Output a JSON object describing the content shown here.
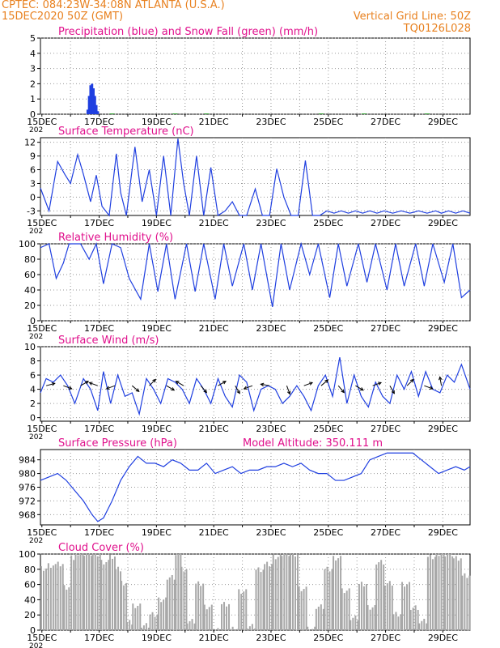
{
  "header": {
    "line1": "CPTEC:   084:23W-34:08N   ATLANTA (U.S.A.)",
    "line2": "15DEC2020 50Z (GMT)",
    "grid_note": "Vertical Grid Line: 50Z",
    "code": "TQ0126L028"
  },
  "colors": {
    "header": "#e8801e",
    "title": "#e0108c",
    "line": "#1f3fe0",
    "bar_precip": "#1f3fe0",
    "bar_snow": "#2ea02e",
    "bar_cloud": "#a8a8a8"
  },
  "x_ticks": [
    "15DEC",
    "17DEC",
    "19DEC",
    "21DEC",
    "23DEC",
    "25DEC",
    "27DEC",
    "29DEC"
  ],
  "year_label": "202",
  "chart_data": [
    {
      "type": "bar",
      "title": "Precipitation (blue) and Snow Fall (green) (mm/h)",
      "ylim": [
        0,
        5
      ],
      "yticks": [
        0,
        1,
        2,
        3,
        4,
        5
      ],
      "x_unit": "days since 15DEC",
      "series": [
        {
          "name": "Precipitation",
          "x": [
            1.65,
            1.7,
            1.75,
            1.8,
            1.85,
            1.9,
            1.95,
            2.0
          ],
          "values": [
            0.3,
            1.2,
            1.9,
            2.0,
            1.7,
            1.2,
            0.6,
            0.2
          ]
        },
        {
          "name": "Snow Fall",
          "x": [
            2.5,
            4.7,
            5.8,
            9.8,
            11.3,
            13.5
          ],
          "values": [
            0.05,
            0.05,
            0.05,
            0.05,
            0.05,
            0.05
          ]
        }
      ]
    },
    {
      "type": "line",
      "title": "Surface Temperature (nC)",
      "ylim": [
        -4,
        13
      ],
      "yticks": [
        -3,
        0,
        3,
        6,
        9,
        12
      ],
      "x": [
        0,
        0.3,
        0.6,
        0.85,
        1.05,
        1.3,
        1.5,
        1.75,
        1.95,
        2.15,
        2.4,
        2.65,
        2.8,
        3.0,
        3.3,
        3.55,
        3.8,
        4.05,
        4.3,
        4.55,
        4.8,
        5.0,
        5.2,
        5.45,
        5.7,
        5.95,
        6.2,
        6.45,
        6.7,
        6.95,
        7.2,
        7.5,
        7.75,
        8.0,
        8.25,
        8.5,
        8.75,
        9.0,
        9.25,
        9.5,
        9.75,
        10.0,
        10.25,
        10.5,
        10.75,
        11.0,
        11.25,
        11.5,
        11.75,
        12.0,
        12.3,
        12.6,
        12.9,
        13.2,
        13.5,
        13.8,
        14.0,
        14.25,
        14.5,
        14.75,
        15.0
      ],
      "values": [
        2,
        -3,
        7.8,
        5,
        3,
        9.3,
        5,
        -1,
        4.8,
        -2,
        -4,
        9.5,
        1,
        -4,
        11,
        -1,
        6,
        -4,
        9,
        -4,
        12.8,
        3,
        -4,
        9,
        -4,
        6.5,
        -4,
        -3,
        -1,
        -4,
        -4,
        1.8,
        -4,
        -4,
        6.2,
        0,
        -4,
        -4,
        8,
        -4,
        -4,
        -3,
        -3.5,
        -3,
        -3.5,
        -3,
        -3.5,
        -3,
        -3.5,
        -3,
        -3.5,
        -3,
        -3.5,
        -3,
        -3.5,
        -3,
        -3.5,
        -3,
        -3.5,
        -3,
        -3.5
      ]
    },
    {
      "type": "line",
      "title": "Relative Humidity (%)",
      "ylim": [
        0,
        100
      ],
      "yticks": [
        0,
        20,
        40,
        60,
        80,
        100
      ],
      "x": [
        0,
        0.3,
        0.55,
        0.8,
        1.0,
        1.4,
        1.7,
        1.95,
        2.2,
        2.5,
        2.8,
        3.1,
        3.5,
        3.8,
        4.1,
        4.4,
        4.7,
        5.1,
        5.4,
        5.7,
        6.1,
        6.4,
        6.7,
        7.1,
        7.4,
        7.7,
        8.1,
        8.4,
        8.7,
        9.1,
        9.4,
        9.7,
        10.1,
        10.4,
        10.7,
        11.1,
        11.4,
        11.7,
        12.1,
        12.4,
        12.7,
        13.1,
        13.4,
        13.7,
        14.1,
        14.4,
        14.7,
        15.0
      ],
      "values": [
        95,
        100,
        55,
        75,
        100,
        100,
        80,
        100,
        48,
        100,
        95,
        55,
        28,
        100,
        38,
        100,
        28,
        100,
        38,
        100,
        28,
        100,
        45,
        100,
        40,
        100,
        18,
        100,
        40,
        100,
        60,
        100,
        30,
        100,
        45,
        100,
        50,
        100,
        40,
        100,
        45,
        100,
        45,
        100,
        50,
        100,
        30,
        40
      ]
    },
    {
      "type": "line",
      "title": "Surface Wind (m/s)",
      "ylim": [
        -0.5,
        10
      ],
      "yticks": [
        0,
        2,
        4,
        6,
        8,
        10
      ],
      "x": [
        0,
        0.2,
        0.45,
        0.7,
        0.95,
        1.2,
        1.5,
        1.75,
        2.0,
        2.2,
        2.45,
        2.7,
        2.95,
        3.2,
        3.45,
        3.7,
        3.95,
        4.2,
        4.45,
        4.7,
        4.95,
        5.2,
        5.45,
        5.7,
        5.95,
        6.2,
        6.45,
        6.7,
        6.95,
        7.2,
        7.45,
        7.7,
        7.95,
        8.2,
        8.45,
        8.7,
        8.95,
        9.2,
        9.45,
        9.7,
        9.95,
        10.2,
        10.45,
        10.7,
        10.95,
        11.2,
        11.45,
        11.7,
        11.95,
        12.2,
        12.45,
        12.7,
        12.95,
        13.2,
        13.45,
        13.7,
        13.95,
        14.2,
        14.45,
        14.7,
        15.0
      ],
      "values": [
        3.5,
        5.5,
        5,
        6,
        4.5,
        2,
        5.5,
        4,
        1,
        6.5,
        2,
        6,
        3,
        3.5,
        0.5,
        5.5,
        4,
        2,
        5.5,
        5,
        4,
        2,
        5.5,
        4,
        2,
        5.5,
        3,
        1.5,
        6,
        5,
        1,
        4,
        4.5,
        4,
        2,
        3,
        4.5,
        3,
        1,
        4.5,
        6,
        3,
        8.5,
        2,
        6,
        3,
        1.5,
        5,
        3,
        2,
        6,
        4,
        6.5,
        3,
        6.5,
        4,
        3.5,
        6,
        5,
        7.5,
        4
      ]
    },
    {
      "type": "line",
      "title": "Surface Pressure (hPa)",
      "annotation": "Model Altitude: 350.111 m",
      "ylim": [
        965,
        987
      ],
      "yticks": [
        968,
        972,
        976,
        980,
        984
      ],
      "x": [
        0,
        0.3,
        0.6,
        0.9,
        1.2,
        1.5,
        1.8,
        2.0,
        2.2,
        2.5,
        2.8,
        3.1,
        3.4,
        3.7,
        4.0,
        4.3,
        4.6,
        4.9,
        5.2,
        5.5,
        5.8,
        6.1,
        6.4,
        6.7,
        7.0,
        7.3,
        7.6,
        7.9,
        8.2,
        8.5,
        8.8,
        9.1,
        9.4,
        9.7,
        10.0,
        10.3,
        10.6,
        10.9,
        11.2,
        11.5,
        11.8,
        12.1,
        12.4,
        12.7,
        13.0,
        13.3,
        13.6,
        13.9,
        14.2,
        14.5,
        14.8,
        15.0
      ],
      "values": [
        978,
        979,
        980,
        978,
        975,
        972,
        968,
        966,
        967,
        972,
        978,
        982,
        985,
        983,
        983,
        982,
        984,
        983,
        981,
        981,
        983,
        980,
        981,
        982,
        980,
        981,
        981,
        982,
        982,
        983,
        982,
        983,
        981,
        980,
        980,
        978,
        978,
        979,
        980,
        984,
        985,
        986,
        986,
        986,
        986,
        984,
        982,
        980,
        981,
        982,
        981,
        982
      ]
    },
    {
      "type": "area",
      "title": "Cloud Cover (%)",
      "ylim": [
        0,
        100
      ],
      "yticks": [
        0,
        20,
        40,
        60,
        80,
        100
      ],
      "x": [
        0,
        0.25,
        0.5,
        0.8,
        1.05,
        1.2,
        1.5,
        1.8,
        2.1,
        2.4,
        2.6,
        2.8,
        3.0,
        3.2,
        3.5,
        3.8,
        4.1,
        4.4,
        4.7,
        4.9,
        5.1,
        5.4,
        5.7,
        6.0,
        6.3,
        6.6,
        6.9,
        7.2,
        7.5,
        7.8,
        8.1,
        8.4,
        8.7,
        9.0,
        9.3,
        9.6,
        9.9,
        10.2,
        10.5,
        10.8,
        11.1,
        11.4,
        11.7,
        12.0,
        12.3,
        12.6,
        12.9,
        13.2,
        13.5,
        13.8,
        14.1,
        14.4,
        14.7,
        15.0
      ],
      "values": [
        80,
        85,
        85,
        55,
        95,
        100,
        100,
        100,
        90,
        95,
        80,
        60,
        10,
        30,
        5,
        20,
        40,
        70,
        100,
        80,
        10,
        60,
        30,
        0,
        35,
        0,
        50,
        5,
        80,
        85,
        95,
        100,
        100,
        55,
        0,
        30,
        80,
        95,
        50,
        15,
        60,
        30,
        90,
        60,
        20,
        60,
        30,
        10,
        95,
        100,
        100,
        95,
        70,
        0
      ]
    }
  ]
}
